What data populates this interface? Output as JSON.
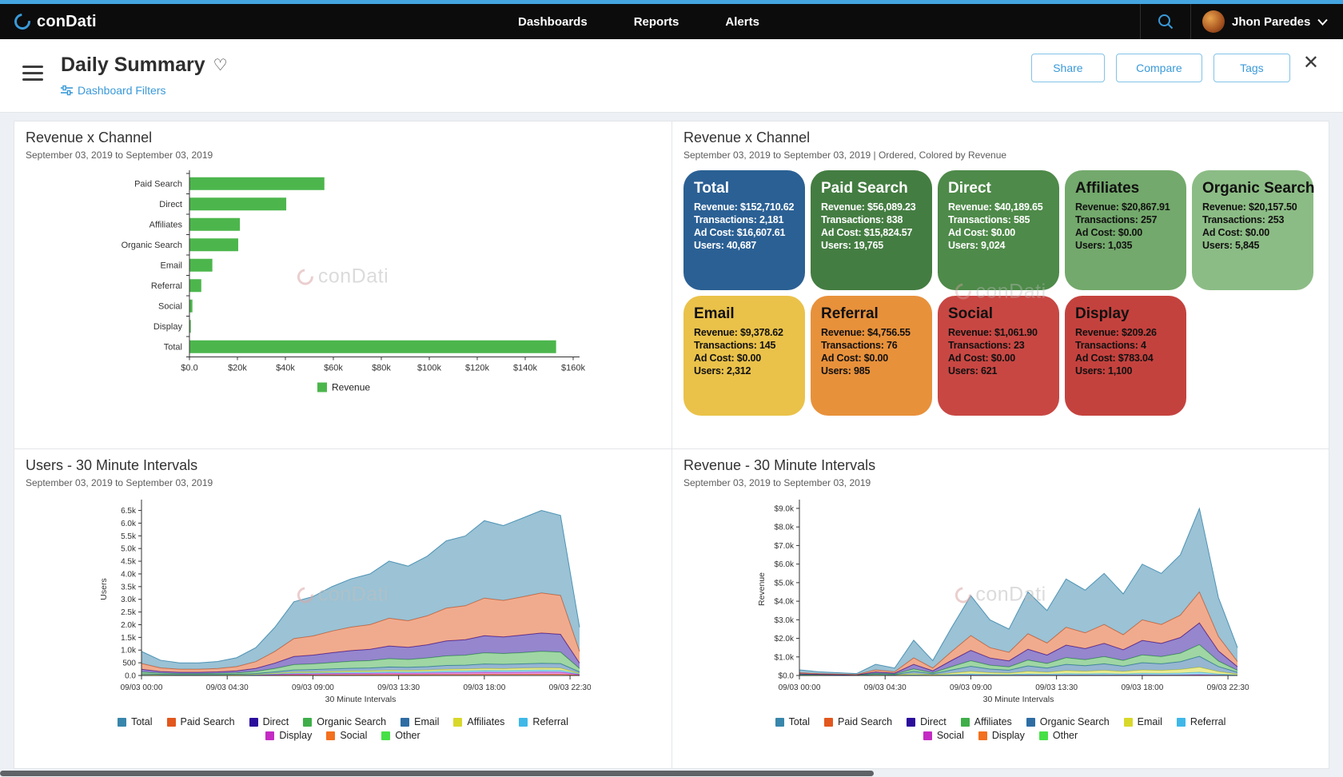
{
  "app": {
    "accent": "#3a9ad9",
    "top_strip_color": "#44a5e0",
    "watermark_text": "conDati"
  },
  "header": {
    "brand": "conDati",
    "nav": [
      {
        "label": "Dashboards"
      },
      {
        "label": "Reports"
      },
      {
        "label": "Alerts"
      }
    ],
    "user": {
      "name": "Jhon Paredes"
    }
  },
  "toolbar": {
    "title": "Daily Summary",
    "filters_label": "Dashboard Filters",
    "buttons": [
      {
        "label": "Share"
      },
      {
        "label": "Compare"
      },
      {
        "label": "Tags"
      }
    ]
  },
  "cards_panel": {
    "field_labels": [
      "Revenue",
      "Transactions",
      "Ad Cost",
      "Users"
    ]
  },
  "chart_data": [
    {
      "id": "revenue-by-channel-bar",
      "type": "bar",
      "orientation": "horizontal",
      "title": "Revenue x Channel",
      "subtitle": "September 03, 2019 to September 03, 2019",
      "categories": [
        "Paid Search",
        "Direct",
        "Affiliates",
        "Organic Search",
        "Email",
        "Referral",
        "Social",
        "Display",
        "Total"
      ],
      "values": [
        56089.23,
        40189.65,
        20867.91,
        20157.5,
        9378.62,
        4756.55,
        1061.9,
        209.26,
        152710.62
      ],
      "xlim": [
        0,
        160000
      ],
      "xtick_labels": [
        "$0.0",
        "$20k",
        "$40k",
        "$60k",
        "$80k",
        "$100k",
        "$120k",
        "$140k",
        "$160k"
      ],
      "bar_color": "#4cb64c",
      "legend": [
        {
          "label": "Revenue",
          "color": "#4cb64c"
        }
      ]
    },
    {
      "id": "revenue-by-channel-cards",
      "type": "table",
      "title": "Revenue x Channel",
      "subtitle": "September 03, 2019 to September 03, 2019 | Ordered, Colored by Revenue",
      "columns": [
        "Channel",
        "Revenue",
        "Transactions",
        "Ad Cost",
        "Users"
      ],
      "cards": [
        {
          "label": "Total",
          "revenue": "$152,710.62",
          "transactions": "2,181",
          "ad_cost": "$16,607.61",
          "users": "40,687",
          "bg": "#2b6094",
          "text": "#ffffff"
        },
        {
          "label": "Paid Search",
          "revenue": "$56,089.23",
          "transactions": "838",
          "ad_cost": "$15,824.57",
          "users": "19,765",
          "bg": "#447d42",
          "text": "#ffffff"
        },
        {
          "label": "Direct",
          "revenue": "$40,189.65",
          "transactions": "585",
          "ad_cost": "$0.00",
          "users": "9,024",
          "bg": "#4e8a49",
          "text": "#ffffff"
        },
        {
          "label": "Affiliates",
          "revenue": "$20,867.91",
          "transactions": "257",
          "ad_cost": "$0.00",
          "users": "1,035",
          "bg": "#73a96c",
          "text": "#111111"
        },
        {
          "label": "Organic Search",
          "revenue": "$20,157.50",
          "transactions": "253",
          "ad_cost": "$0.00",
          "users": "5,845",
          "bg": "#8cbc85",
          "text": "#111111"
        },
        {
          "label": "Email",
          "revenue": "$9,378.62",
          "transactions": "145",
          "ad_cost": "$0.00",
          "users": "2,312",
          "bg": "#eac24a",
          "text": "#111111"
        },
        {
          "label": "Referral",
          "revenue": "$4,756.55",
          "transactions": "76",
          "ad_cost": "$0.00",
          "users": "985",
          "bg": "#e8913b",
          "text": "#111111"
        },
        {
          "label": "Social",
          "revenue": "$1,061.90",
          "transactions": "23",
          "ad_cost": "$0.00",
          "users": "621",
          "bg": "#c84743",
          "text": "#111111"
        },
        {
          "label": "Display",
          "revenue": "$209.26",
          "transactions": "4",
          "ad_cost": "$783.04",
          "users": "1,100",
          "bg": "#c4423e",
          "text": "#111111"
        }
      ]
    },
    {
      "id": "users-30-minute-intervals",
      "type": "area",
      "stacked": true,
      "title": "Users - 30 Minute Intervals",
      "subtitle": "September 03, 2019 to September 03, 2019",
      "xlabel": "30 Minute Intervals",
      "ylabel": "Users",
      "ylim": [
        0,
        6800
      ],
      "ytick_step": 500,
      "ytick_labels": [
        "0.0",
        "500",
        "1.0k",
        "1.5k",
        "2.0k",
        "2.5k",
        "3.0k",
        "3.5k",
        "4.0k",
        "4.5k",
        "5.0k",
        "5.5k",
        "6.0k",
        "6.5k"
      ],
      "hours": [
        0,
        1,
        2,
        3,
        4,
        5,
        6,
        7,
        8,
        9,
        10,
        11,
        12,
        13,
        14,
        15,
        16,
        17,
        18,
        19,
        20,
        21,
        22,
        23
      ],
      "xtick_hours": [
        0,
        4.5,
        9,
        13.5,
        18,
        22.5
      ],
      "xtick_labels": [
        "09/03 00:00",
        "09/03 04:30",
        "09/03 09:00",
        "09/03 13:30",
        "09/03 18:00",
        "09/03 22:30"
      ],
      "series": [
        {
          "name": "Other",
          "color": "#46e046",
          "values": [
            0,
            0,
            0,
            0,
            0,
            0,
            0,
            0,
            0,
            0,
            0,
            0,
            0,
            0,
            0,
            0,
            0,
            0,
            0,
            0,
            0,
            0,
            0,
            0
          ]
        },
        {
          "name": "Social",
          "color": "#f3701e",
          "values": [
            7,
            5,
            4,
            4,
            4,
            5,
            8,
            14,
            22,
            23,
            26,
            29,
            30,
            34,
            32,
            35,
            40,
            41,
            46,
            44,
            47,
            49,
            47,
            14
          ]
        },
        {
          "name": "Display",
          "color": "#c32bc3",
          "values": [
            13,
            8,
            7,
            7,
            7,
            9,
            15,
            25,
            40,
            42,
            47,
            51,
            54,
            61,
            58,
            63,
            72,
            74,
            82,
            80,
            84,
            88,
            85,
            26
          ]
        },
        {
          "name": "Referral",
          "color": "#3fb8e8",
          "values": [
            11,
            7,
            6,
            6,
            7,
            8,
            13,
            23,
            35,
            37,
            42,
            46,
            48,
            54,
            52,
            56,
            64,
            66,
            73,
            71,
            74,
            78,
            76,
            23
          ]
        },
        {
          "name": "Affiliates",
          "color": "#d8d82b",
          "values": [
            12,
            8,
            6,
            6,
            7,
            9,
            14,
            24,
            36,
            39,
            44,
            48,
            50,
            56,
            54,
            59,
            66,
            69,
            76,
            74,
            78,
            81,
            79,
            24
          ]
        },
        {
          "name": "Email",
          "color": "#2e6da4",
          "values": [
            25,
            17,
            14,
            14,
            16,
            20,
            30,
            55,
            85,
            90,
            100,
            110,
            115,
            130,
            125,
            135,
            150,
            155,
            175,
            170,
            175,
            185,
            180,
            55
          ]
        },
        {
          "name": "Organic Search",
          "color": "#3fae49",
          "values": [
            70,
            45,
            35,
            35,
            40,
            50,
            80,
            135,
            210,
            225,
            250,
            275,
            290,
            325,
            310,
            340,
            380,
            395,
            440,
            425,
            445,
            470,
            455,
            135
          ]
        },
        {
          "name": "Direct",
          "color": "#2b0e9c",
          "values": [
            105,
            65,
            55,
            55,
            60,
            80,
            120,
            210,
            320,
            345,
            390,
            420,
            445,
            500,
            480,
            520,
            590,
            610,
            675,
            655,
            690,
            720,
            700,
            210
          ]
        },
        {
          "name": "Paid Search",
          "color": "#e2571d",
          "values": [
            230,
            145,
            120,
            120,
            135,
            170,
            265,
            460,
            705,
            755,
            850,
            925,
            970,
            1095,
            1045,
            1140,
            1290,
            1335,
            1480,
            1435,
            1505,
            1580,
            1530,
            460
          ]
        },
        {
          "name": "Total",
          "color": "#3886ab",
          "values": [
            475,
            300,
            250,
            250,
            275,
            350,
            550,
            950,
            1450,
            1550,
            1750,
            1900,
            2000,
            2250,
            2150,
            2350,
            2650,
            2750,
            3050,
            2950,
            3100,
            3250,
            3150,
            950
          ]
        }
      ],
      "legend_rows": [
        [
          "Total",
          "Paid Search",
          "Direct",
          "Organic Search",
          "Email",
          "Affiliates",
          "Referral"
        ],
        [
          "Display",
          "Social",
          "Other"
        ]
      ]
    },
    {
      "id": "revenue-30-minute-intervals",
      "type": "area",
      "stacked": true,
      "title": "Revenue - 30 Minute Intervals",
      "subtitle": "September 03, 2019 to September 03, 2019",
      "xlabel": "30 Minute Intervals",
      "ylabel": "Revenue",
      "ylim": [
        0,
        9300
      ],
      "ytick_step": 1000,
      "ytick_labels": [
        "$0.0",
        "$1.0k",
        "$2.0k",
        "$3.0k",
        "$4.0k",
        "$5.0k",
        "$6.0k",
        "$7.0k",
        "$8.0k",
        "$9.0k"
      ],
      "hours": [
        0,
        1,
        2,
        3,
        4,
        5,
        6,
        7,
        8,
        9,
        10,
        11,
        12,
        13,
        14,
        15,
        16,
        17,
        18,
        19,
        20,
        21,
        22,
        23
      ],
      "xtick_hours": [
        0,
        4.5,
        9,
        13.5,
        18,
        22.5
      ],
      "xtick_labels": [
        "09/03 00:00",
        "09/03 04:30",
        "09/03 09:00",
        "09/03 13:30",
        "09/03 18:00",
        "09/03 22:30"
      ],
      "series": [
        {
          "name": "Other",
          "color": "#46e046",
          "values": [
            0,
            0,
            0,
            0,
            0,
            0,
            0,
            0,
            0,
            0,
            0,
            0,
            0,
            0,
            0,
            0,
            0,
            0,
            0,
            0,
            0,
            0,
            0,
            0
          ]
        },
        {
          "name": "Display",
          "color": "#f3701e",
          "values": [
            0,
            0,
            0,
            0,
            1,
            0,
            2,
            1,
            3,
            4,
            3,
            2,
            4,
            3,
            5,
            4,
            5,
            4,
            6,
            5,
            6,
            9,
            4,
            1
          ]
        },
        {
          "name": "Social",
          "color": "#c32bc3",
          "values": [
            1,
            1,
            1,
            0,
            2,
            1,
            7,
            3,
            9,
            15,
            11,
            9,
            16,
            12,
            18,
            16,
            19,
            15,
            21,
            19,
            23,
            32,
            15,
            5
          ]
        },
        {
          "name": "Referral",
          "color": "#3fb8e8",
          "values": [
            5,
            3,
            2,
            2,
            9,
            6,
            29,
            12,
            39,
            65,
            45,
            38,
            68,
            53,
            78,
            69,
            83,
            66,
            90,
            83,
            98,
            135,
            63,
            23
          ]
        },
        {
          "name": "Email",
          "color": "#d8d82b",
          "values": [
            9,
            6,
            5,
            3,
            18,
            12,
            57,
            24,
            78,
            129,
            90,
            75,
            135,
            105,
            156,
            138,
            165,
            132,
            180,
            165,
            195,
            270,
            126,
            45
          ]
        },
        {
          "name": "Organic Search",
          "color": "#2e6da4",
          "values": [
            20,
            13,
            10,
            7,
            39,
            26,
            124,
            52,
            169,
            280,
            195,
            163,
            293,
            228,
            338,
            299,
            358,
            286,
            390,
            358,
            423,
            585,
            273,
            98
          ]
        },
        {
          "name": "Affiliates",
          "color": "#3fae49",
          "values": [
            21,
            14,
            11,
            7,
            42,
            28,
            133,
            56,
            182,
            301,
            210,
            175,
            315,
            245,
            364,
            322,
            385,
            308,
            420,
            385,
            455,
            630,
            294,
            105
          ]
        },
        {
          "name": "Direct",
          "color": "#2b0e9c",
          "values": [
            39,
            26,
            20,
            13,
            78,
            52,
            247,
            104,
            338,
            559,
            390,
            325,
            585,
            455,
            676,
            598,
            715,
            572,
            780,
            715,
            845,
            1170,
            546,
            195
          ]
        },
        {
          "name": "Paid Search",
          "color": "#e2571d",
          "values": [
            56,
            37,
            28,
            19,
            111,
            74,
            352,
            148,
            481,
            796,
            555,
            463,
            833,
            648,
            962,
            851,
            1018,
            814,
            1110,
            1018,
            1203,
            1665,
            777,
            278
          ]
        },
        {
          "name": "Total",
          "color": "#3886ab",
          "values": [
            150,
            100,
            75,
            50,
            300,
            200,
            950,
            400,
            1300,
            2150,
            1500,
            1250,
            2250,
            1750,
            2600,
            2300,
            2750,
            2200,
            3000,
            2750,
            3250,
            4500,
            2100,
            750
          ]
        }
      ],
      "legend_rows": [
        [
          "Total",
          "Paid Search",
          "Direct",
          "Affiliates",
          "Organic Search",
          "Email",
          "Referral"
        ],
        [
          "Social",
          "Display",
          "Other"
        ]
      ]
    }
  ]
}
